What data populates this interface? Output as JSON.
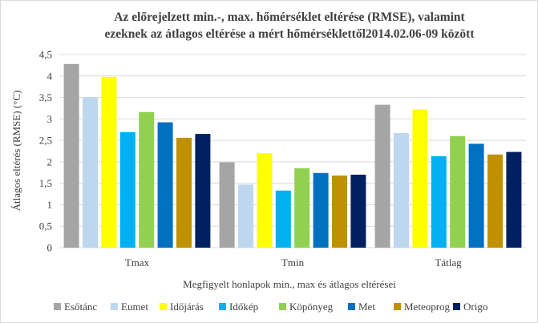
{
  "chart_data": {
    "type": "bar",
    "title_lines": [
      "Az előrejelzett min.-, max. hőmérséklet eltérése (RMSE), valamint",
      "ezeknek az átlagos eltérése a mért hőmérséklettől2014.02.06-09 között"
    ],
    "xlabel": "Megfigyelt honlapok min., max és átlagos eltérései",
    "ylabel": "Átlagos eltérés (RMSE)  (°C)",
    "ylim": [
      0,
      4.5
    ],
    "yticks": [
      "0",
      "0,5",
      "1",
      "1,5",
      "2",
      "2,5",
      "3",
      "3,5",
      "4",
      "4,5"
    ],
    "ytick_values": [
      0,
      0.5,
      1,
      1.5,
      2,
      2.5,
      3,
      3.5,
      4,
      4.5
    ],
    "grid": true,
    "legend_position": "bottom",
    "categories": [
      "Tmax",
      "Tmin",
      "Tátlag"
    ],
    "series": [
      {
        "name": "Esőtánc",
        "color": "#a5a5a5",
        "values": [
          4.28,
          1.99,
          3.33
        ]
      },
      {
        "name": "Eumet",
        "color": "#bdd7ee",
        "values": [
          3.5,
          1.47,
          2.67
        ]
      },
      {
        "name": "Időjárás",
        "color": "#ffff00",
        "values": [
          3.98,
          2.2,
          3.22
        ]
      },
      {
        "name": "Időkép",
        "color": "#00b0f0",
        "values": [
          2.69,
          1.33,
          2.13
        ]
      },
      {
        "name": "Köpönyeg",
        "color": "#92d050",
        "values": [
          3.16,
          1.85,
          2.6
        ]
      },
      {
        "name": "Met",
        "color": "#0070c0",
        "values": [
          2.92,
          1.74,
          2.42
        ]
      },
      {
        "name": "Meteoprog",
        "color": "#bf9000",
        "values": [
          2.56,
          1.68,
          2.17
        ]
      },
      {
        "name": "Origo",
        "color": "#002060",
        "values": [
          2.65,
          1.7,
          2.23
        ]
      }
    ]
  }
}
